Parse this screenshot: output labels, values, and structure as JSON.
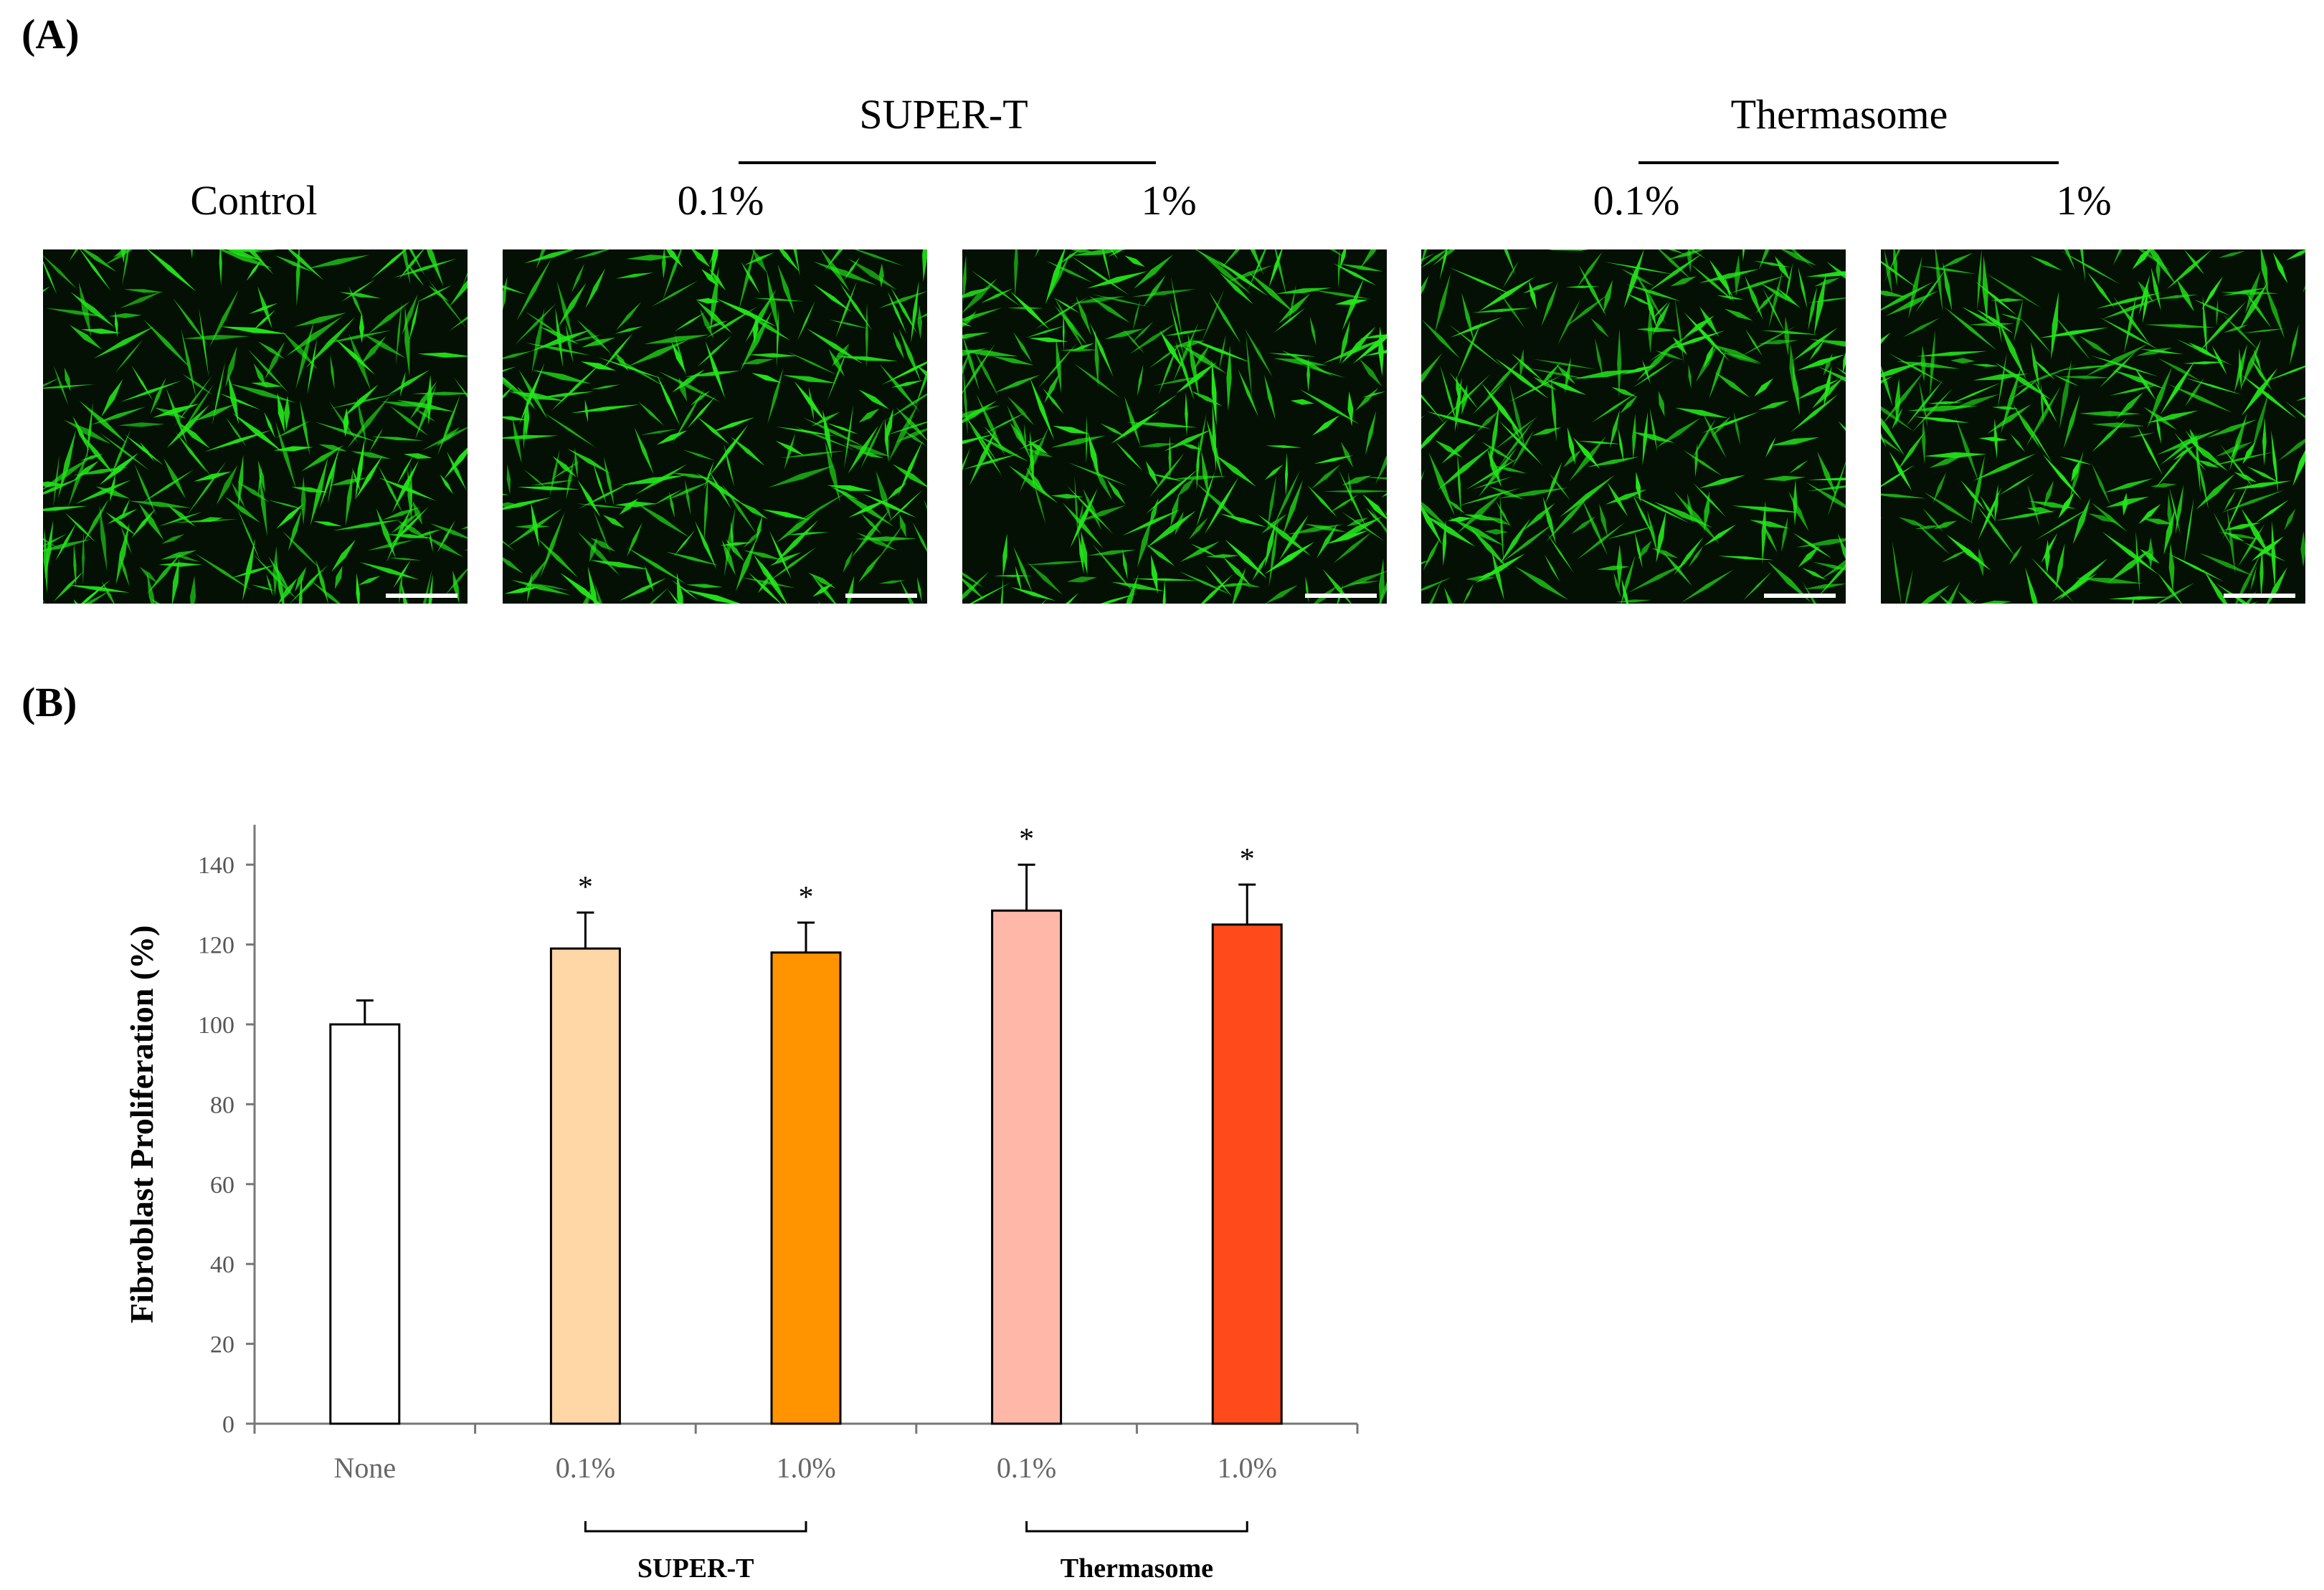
{
  "panel_a": {
    "label": "(A)",
    "group_headers": [
      "SUPER-T",
      "Thermasome"
    ],
    "images": [
      {
        "label": "Control",
        "seed": 11
      },
      {
        "label": "0.1%",
        "seed": 23
      },
      {
        "label": "1%",
        "seed": 37
      },
      {
        "label": "0.1%",
        "seed": 41
      },
      {
        "label": "1%",
        "seed": 53
      }
    ],
    "fluorescence_color": "#22e61a"
  },
  "panel_b": {
    "label": "(B)"
  },
  "chart_data": {
    "type": "bar",
    "categories": [
      "None",
      "0.1%",
      "1.0%",
      "0.1%",
      "1.0%"
    ],
    "values": [
      100,
      119,
      118,
      128.5,
      125
    ],
    "errors": [
      6,
      9,
      7.5,
      11.5,
      10
    ],
    "significance": [
      "",
      "*",
      "*",
      "*",
      "*"
    ],
    "colors": [
      "#ffffff",
      "#ffd6a5",
      "#ff9400",
      "#ffb8a8",
      "#ff4a1c"
    ],
    "groups": [
      {
        "name": "SUPER-T",
        "category_indices": [
          1,
          2
        ]
      },
      {
        "name": "Thermasome",
        "category_indices": [
          3,
          4
        ]
      }
    ],
    "xlabel": "",
    "ylabel": "Fibroblast Proliferation (%)",
    "ylim": [
      0,
      150
    ],
    "yticks": [
      0,
      20,
      40,
      60,
      80,
      100,
      120,
      140
    ],
    "grid": false,
    "legend": "none"
  }
}
